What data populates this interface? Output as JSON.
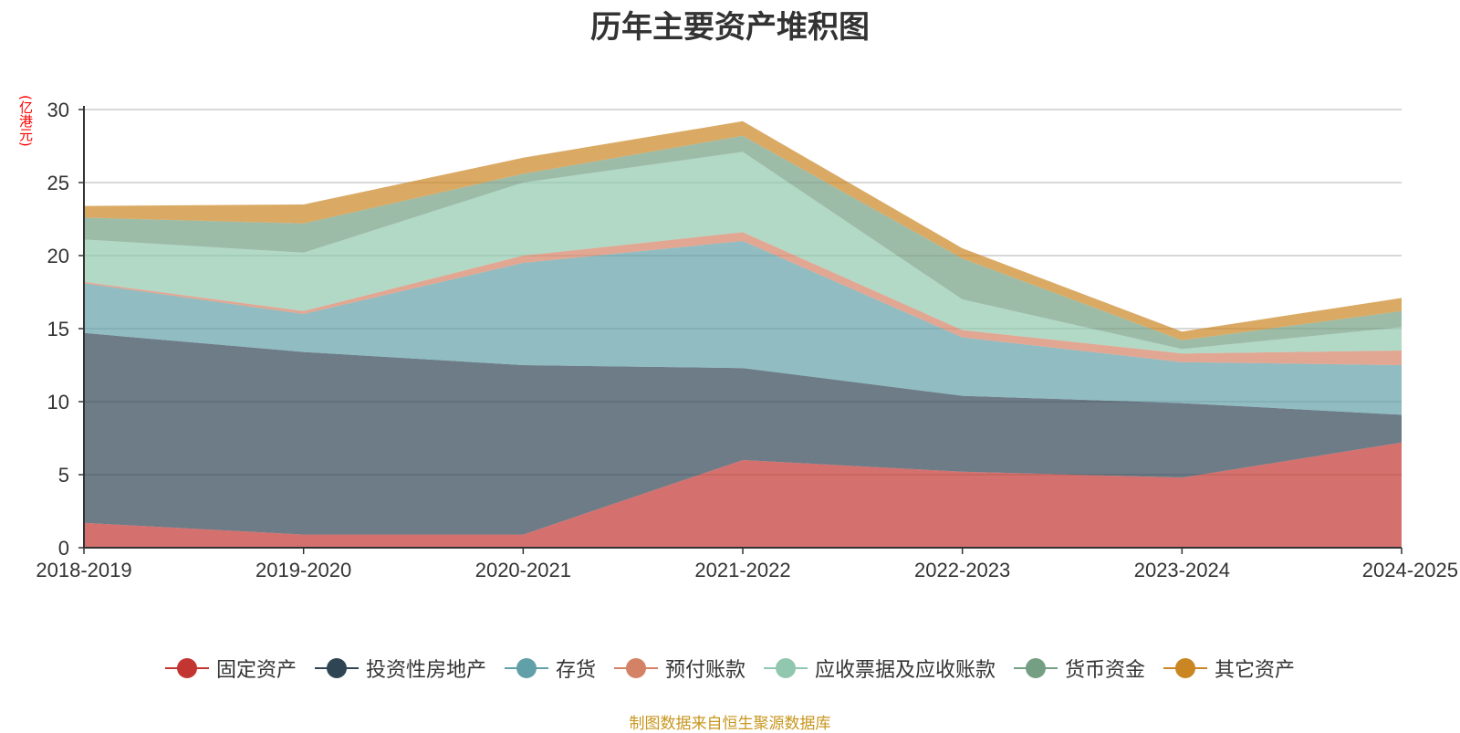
{
  "title": "历年主要资产堆积图",
  "unit_label": "(亿港元)",
  "source_note": "制图数据来自恒生聚源数据库",
  "chart_data": {
    "type": "area",
    "stacked": true,
    "title": "历年主要资产堆积图",
    "ylabel": "(亿港元)",
    "ylim": [
      0,
      30
    ],
    "yticks": [
      0,
      5,
      10,
      15,
      20,
      25,
      30
    ],
    "grid": true,
    "legend_position": "bottom",
    "categories": [
      "2018-2019",
      "2019-2020",
      "2020-2021",
      "2021-2022",
      "2022-2023",
      "2023-2024",
      "2024-2025"
    ],
    "series": [
      {
        "name": "固定资产",
        "color": "#c23531",
        "values": [
          1.7,
          0.9,
          0.9,
          6.0,
          5.2,
          4.8,
          7.2
        ]
      },
      {
        "name": "投资性房地产",
        "color": "#2f4554",
        "values": [
          13.0,
          12.5,
          11.6,
          6.3,
          5.2,
          5.1,
          1.9
        ]
      },
      {
        "name": "存货",
        "color": "#61a0a8",
        "values": [
          3.4,
          2.6,
          7.0,
          8.7,
          4.0,
          2.8,
          3.4
        ]
      },
      {
        "name": "预付账款",
        "color": "#d48265",
        "values": [
          0.1,
          0.2,
          0.5,
          0.6,
          0.5,
          0.6,
          1.0
        ]
      },
      {
        "name": "应收票据及应收账款",
        "color": "#91c7ae",
        "values": [
          2.9,
          4.0,
          5.0,
          5.5,
          2.1,
          0.3,
          1.6
        ]
      },
      {
        "name": "货币资金",
        "color": "#749f83",
        "values": [
          1.5,
          2.0,
          0.6,
          1.1,
          2.8,
          0.6,
          1.1
        ]
      },
      {
        "name": "其它资产",
        "color": "#ca8622",
        "values": [
          0.8,
          1.3,
          1.1,
          1.0,
          0.7,
          0.6,
          0.9
        ]
      }
    ]
  }
}
